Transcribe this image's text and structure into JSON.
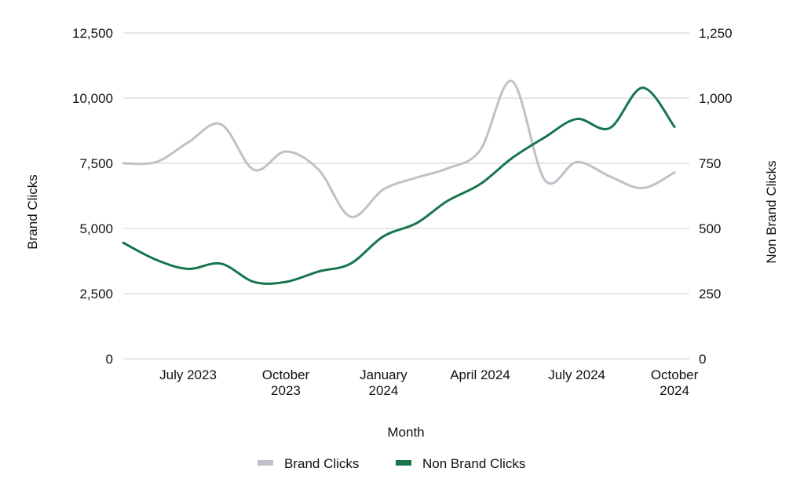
{
  "chart_data": {
    "type": "line",
    "xlabel": "Month",
    "ylabel_left": "Brand Clicks",
    "ylabel_right": "Non Brand Clicks",
    "ylim_left": [
      0,
      12500
    ],
    "ylim_right": [
      0,
      1250
    ],
    "y_ticks_left": [
      "0",
      "2,500",
      "5,000",
      "7,500",
      "10,000",
      "12,500"
    ],
    "y_ticks_right": [
      "0",
      "250",
      "500",
      "750",
      "1,000",
      "1,250"
    ],
    "grid": true,
    "legend_position": "bottom",
    "x_dates": [
      "2023-05-01",
      "2023-06-01",
      "2023-07-01",
      "2023-08-01",
      "2023-09-01",
      "2023-10-01",
      "2023-11-01",
      "2023-12-01",
      "2024-01-01",
      "2024-02-01",
      "2024-03-01",
      "2024-04-01",
      "2024-05-01",
      "2024-06-01",
      "2024-07-01",
      "2024-08-01",
      "2024-09-01",
      "2024-10-01"
    ],
    "x_range": [
      "2023-05-01",
      "2024-10-15"
    ],
    "x_tick_dates": [
      "2023-07-01",
      "2023-10-01",
      "2024-01-01",
      "2024-04-01",
      "2024-07-01",
      "2024-10-01"
    ],
    "x_tick_labels": [
      [
        "July 2023"
      ],
      [
        "October",
        "2023"
      ],
      [
        "January",
        "2024"
      ],
      [
        "April 2024"
      ],
      [
        "July 2024"
      ],
      [
        "October",
        "2024"
      ]
    ],
    "series": [
      {
        "name": "Brand Clicks",
        "axis": "left",
        "color": "#c0c0c8",
        "values": [
          7500,
          7550,
          8300,
          9000,
          7250,
          7950,
          7250,
          5450,
          6500,
          6950,
          7300,
          8000,
          10650,
          6850,
          7550,
          7000,
          6550,
          7150
        ]
      },
      {
        "name": "Non Brand Clicks",
        "axis": "right",
        "color": "#17754c",
        "values": [
          445,
          380,
          345,
          365,
          295,
          295,
          335,
          365,
          470,
          520,
          605,
          670,
          770,
          850,
          920,
          885,
          1040,
          890
        ]
      }
    ]
  }
}
